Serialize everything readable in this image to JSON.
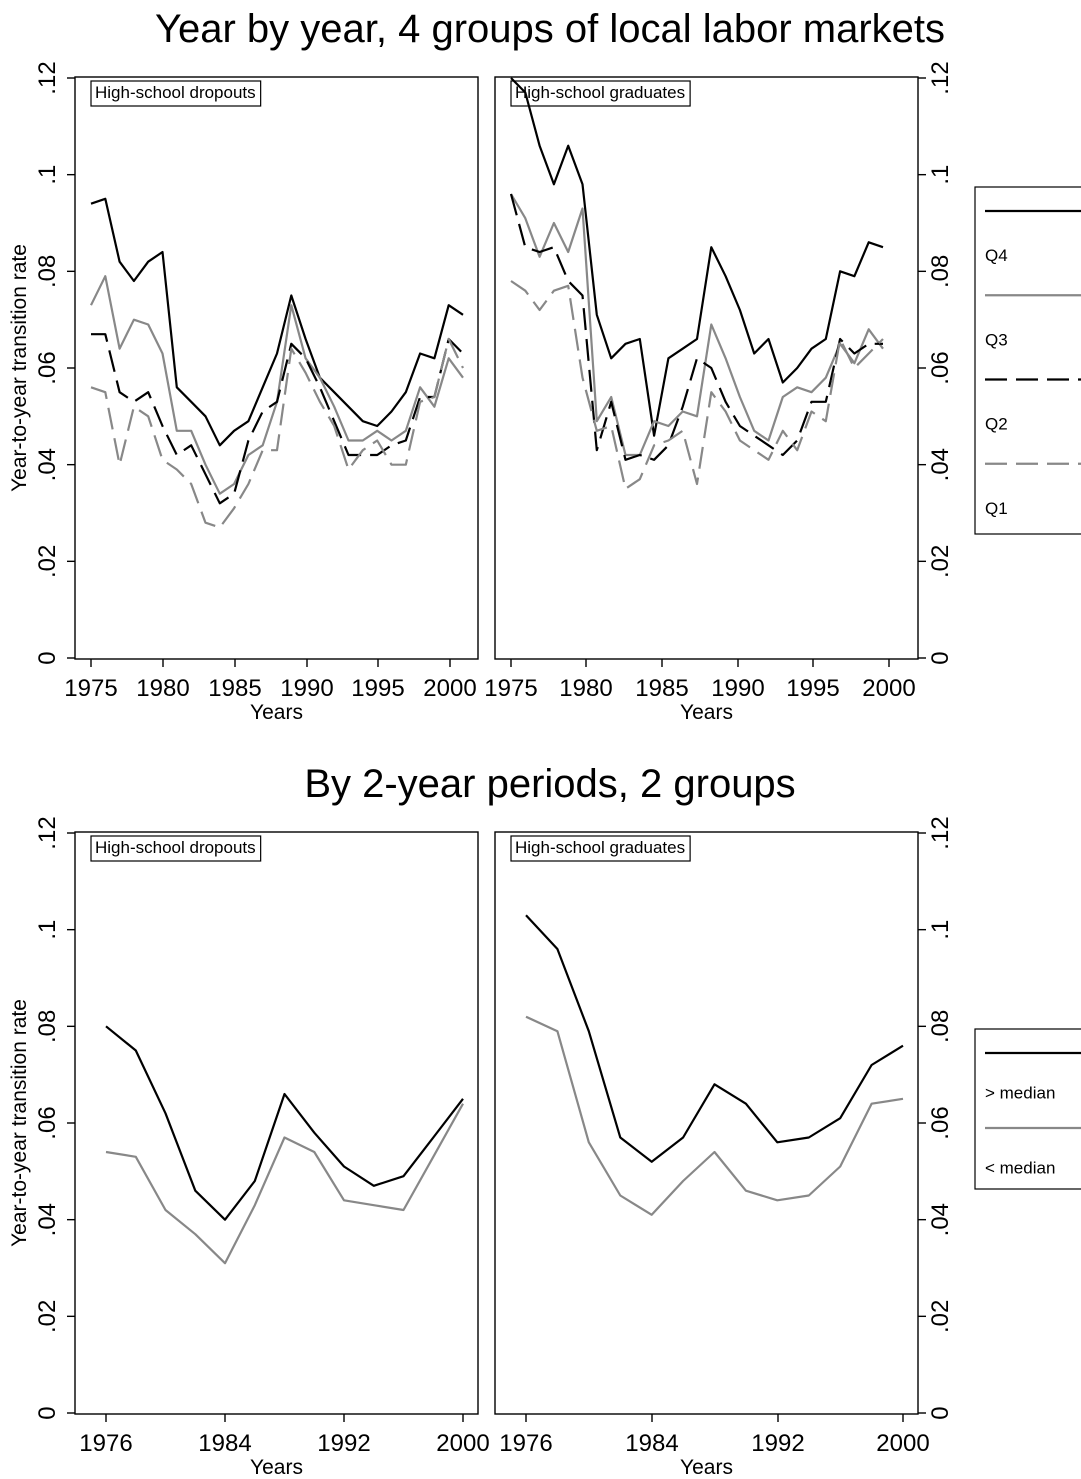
{
  "chart_data": [
    {
      "type": "line",
      "title": "Year by year, 4 groups of local labor markets",
      "ylabel": "Year-to-year transition rate",
      "xlabel": "Years",
      "ylim": [
        0,
        0.12
      ],
      "yticks": [
        ".12",
        ".1",
        ".08",
        ".06",
        ".04",
        ".02",
        "0"
      ],
      "xticks": [
        "1975",
        "1980",
        "1985",
        "1990",
        "1995",
        "2000"
      ],
      "x": [
        1975,
        1976,
        1977,
        1978,
        1979,
        1980,
        1981,
        1982,
        1983,
        1984,
        1985,
        1986,
        1987,
        1988,
        1989,
        1990,
        1991,
        1992,
        1993,
        1994,
        1995,
        1996,
        1997,
        1998,
        1999,
        2000,
        2001
      ],
      "legend": [
        "Q4",
        "Q3",
        "Q2",
        "Q1"
      ],
      "legend_position": "right",
      "colors": {
        "Q4": "#000000",
        "Q3": "#888888",
        "Q2": "#000000",
        "Q1": "#888888"
      },
      "panels": [
        {
          "label": "High-school dropouts",
          "series": [
            {
              "name": "Q4",
              "values": [
                0.094,
                0.095,
                0.082,
                0.078,
                0.082,
                0.084,
                0.056,
                0.053,
                0.05,
                0.044,
                0.047,
                0.049,
                0.056,
                0.063,
                0.075,
                0.066,
                0.058,
                0.055,
                0.052,
                0.049,
                0.048,
                0.051,
                0.055,
                0.063,
                0.062,
                0.073,
                0.071
              ]
            },
            {
              "name": "Q3",
              "values": [
                0.073,
                0.079,
                0.064,
                0.07,
                0.069,
                0.063,
                0.047,
                0.047,
                0.04,
                0.034,
                0.036,
                0.042,
                0.044,
                0.053,
                0.073,
                0.062,
                0.058,
                0.052,
                0.045,
                0.045,
                0.047,
                0.045,
                0.047,
                0.056,
                0.052,
                0.062,
                0.058
              ]
            },
            {
              "name": "Q2",
              "values": [
                0.067,
                0.067,
                0.055,
                0.053,
                0.055,
                0.048,
                0.042,
                0.044,
                0.038,
                0.032,
                0.034,
                0.045,
                0.051,
                0.053,
                0.065,
                0.062,
                0.056,
                0.049,
                0.042,
                0.042,
                0.042,
                0.044,
                0.045,
                0.054,
                0.054,
                0.066,
                0.063
              ]
            },
            {
              "name": "Q1",
              "values": [
                0.056,
                0.055,
                0.04,
                0.052,
                0.05,
                0.041,
                0.039,
                0.036,
                0.028,
                0.027,
                0.031,
                0.036,
                0.043,
                0.043,
                0.064,
                0.059,
                0.053,
                0.048,
                0.039,
                0.043,
                0.045,
                0.04,
                0.04,
                0.053,
                0.054,
                0.066,
                0.06
              ]
            }
          ]
        },
        {
          "label": "High-school graduates",
          "series": [
            {
              "name": "Q4",
              "values": [
                0.12,
                0.117,
                0.106,
                0.098,
                0.106,
                0.098,
                0.071,
                0.062,
                0.065,
                0.066,
                0.046,
                0.062,
                0.064,
                0.066,
                0.085,
                0.079,
                0.072,
                0.063,
                0.066,
                0.057,
                0.06,
                0.064,
                0.066,
                0.08,
                0.079,
                0.086,
                0.085
              ]
            },
            {
              "name": "Q3",
              "values": [
                0.096,
                0.091,
                0.083,
                0.09,
                0.084,
                0.093,
                0.049,
                0.054,
                0.042,
                0.042,
                0.049,
                0.048,
                0.051,
                0.05,
                0.069,
                0.062,
                0.054,
                0.047,
                0.045,
                0.054,
                0.056,
                0.055,
                0.058,
                0.065,
                0.061,
                0.068,
                0.064
              ]
            },
            {
              "name": "Q2",
              "values": [
                0.096,
                0.085,
                0.084,
                0.085,
                0.078,
                0.075,
                0.043,
                0.053,
                0.041,
                0.042,
                0.041,
                0.044,
                0.052,
                0.062,
                0.06,
                0.053,
                0.048,
                0.046,
                0.044,
                0.042,
                0.045,
                0.053,
                0.053,
                0.066,
                0.063,
                0.065,
                0.065
              ]
            },
            {
              "name": "Q1",
              "values": [
                0.078,
                0.076,
                0.072,
                0.076,
                0.077,
                0.058,
                0.047,
                0.048,
                0.035,
                0.037,
                0.044,
                0.045,
                0.047,
                0.036,
                0.055,
                0.051,
                0.045,
                0.043,
                0.041,
                0.047,
                0.043,
                0.051,
                0.049,
                0.066,
                0.06,
                0.063,
                0.066
              ]
            }
          ]
        }
      ]
    },
    {
      "type": "line",
      "title": "By 2-year periods, 2 groups",
      "ylabel": "Year-to-year transition rate",
      "xlabel": "Years",
      "ylim": [
        0,
        0.12
      ],
      "yticks": [
        ".12",
        ".1",
        ".08",
        ".06",
        ".04",
        ".02",
        "0"
      ],
      "xticks": [
        "1976",
        "1984",
        "1992",
        "2000"
      ],
      "x": [
        1976,
        1978,
        1980,
        1982,
        1984,
        1986,
        1988,
        1990,
        1992,
        1994,
        1996,
        1998,
        2000
      ],
      "legend": [
        "> median",
        "< median"
      ],
      "legend_position": "right",
      "colors": {
        "> median": "#000000",
        "< median": "#888888"
      },
      "panels": [
        {
          "label": "High-school dropouts",
          "series": [
            {
              "name": "> median",
              "values": [
                0.08,
                0.075,
                0.062,
                0.046,
                0.04,
                0.048,
                0.066,
                0.058,
                0.051,
                0.047,
                0.049,
                0.057,
                0.065
              ]
            },
            {
              "name": "< median",
              "values": [
                0.054,
                0.053,
                0.042,
                0.037,
                0.031,
                0.043,
                0.057,
                0.054,
                0.044,
                0.043,
                0.042,
                0.053,
                0.064
              ]
            }
          ]
        },
        {
          "label": "High-school graduates",
          "series": [
            {
              "name": "> median",
              "values": [
                0.103,
                0.096,
                0.079,
                0.057,
                0.052,
                0.057,
                0.068,
                0.064,
                0.056,
                0.057,
                0.061,
                0.072,
                0.076
              ]
            },
            {
              "name": "< median",
              "values": [
                0.082,
                0.079,
                0.056,
                0.045,
                0.041,
                0.048,
                0.054,
                0.046,
                0.044,
                0.045,
                0.051,
                0.064,
                0.065
              ]
            }
          ]
        }
      ]
    }
  ]
}
